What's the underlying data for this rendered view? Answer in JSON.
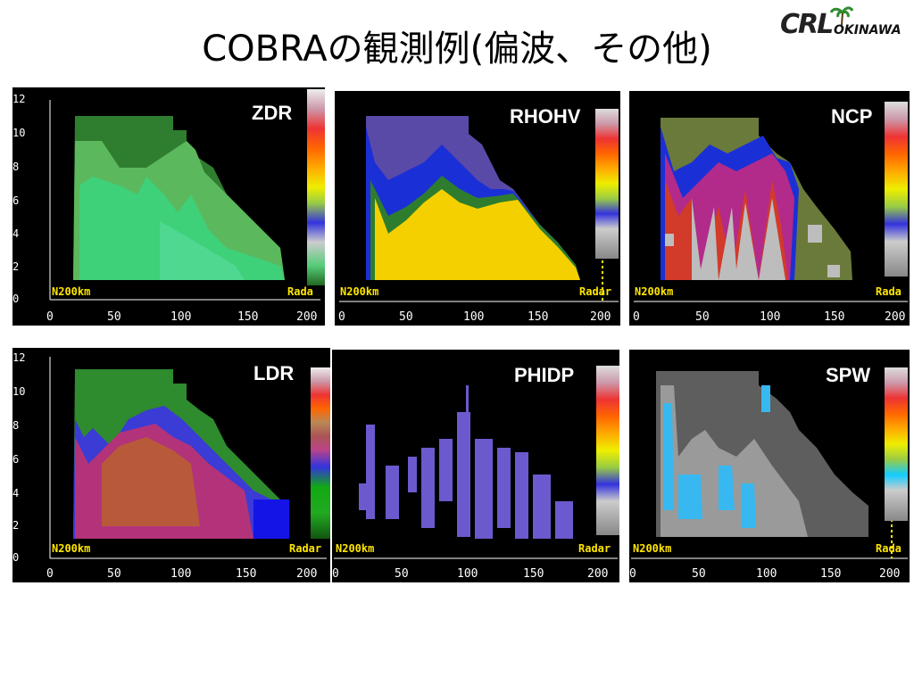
{
  "title": "COBRAの観測例(偏波、その他)",
  "logo": {
    "text1": "CRL",
    "text2": "OKINAWA"
  },
  "panels": [
    {
      "label": "ZDR"
    },
    {
      "label": "RHOHV"
    },
    {
      "label": "NCP"
    },
    {
      "label": "LDR"
    },
    {
      "label": "PHIDP"
    },
    {
      "label": "SPW"
    }
  ],
  "axis": {
    "y_ticks": [
      "12",
      "10",
      "8",
      "6",
      "4",
      "2",
      "0"
    ],
    "x_ticks": [
      "0",
      "50",
      "100",
      "150",
      "200"
    ],
    "left_marker": "N200km",
    "right_marker": "Radar",
    "right_marker_trunc": "Rada"
  }
}
